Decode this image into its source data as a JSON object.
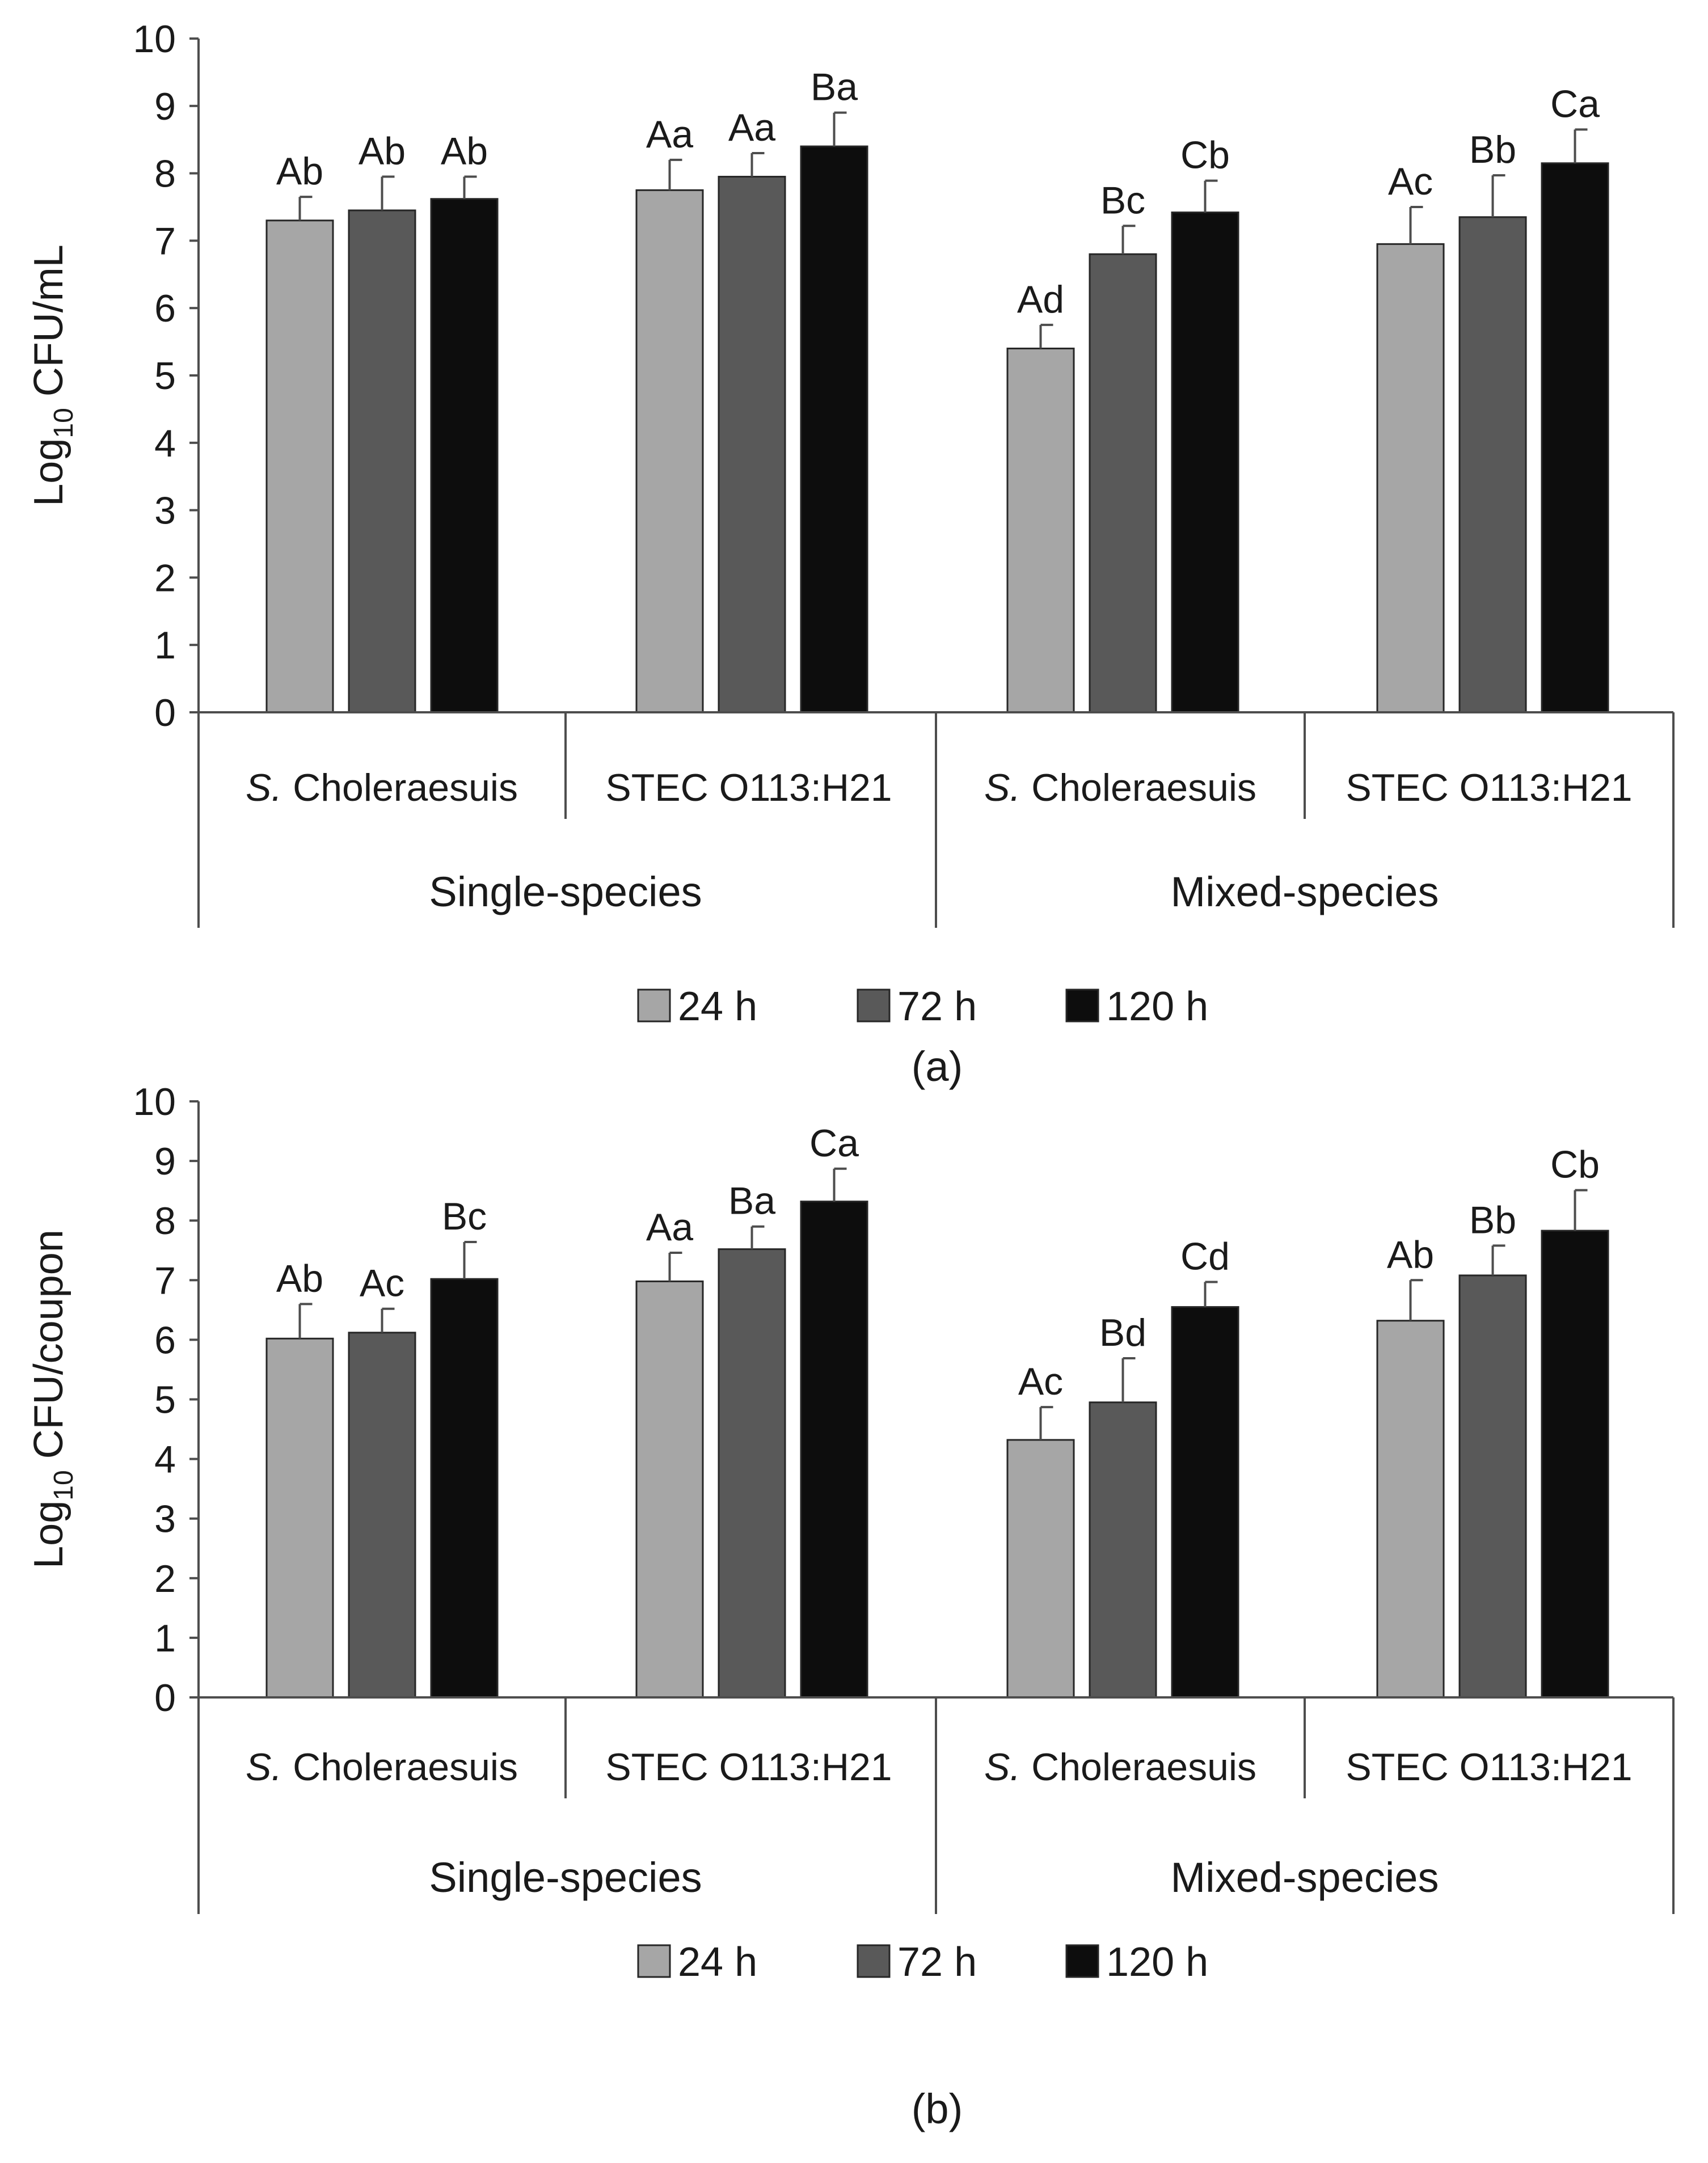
{
  "colors": {
    "series_24h": "#a6a6a6",
    "series_72h": "#595959",
    "series_120h": "#0d0d0d",
    "axis": "#4d4d4d",
    "bar_stroke": "#262626",
    "text": "#1a1a1a"
  },
  "chart_data": [
    {
      "type": "bar",
      "panel_label": "(a)",
      "ylabel": {
        "base": "Log",
        "sub": "10",
        "rest": " CFU/mL"
      },
      "ylim": [
        0,
        10
      ],
      "yticks": [
        "0",
        "1",
        "2",
        "3",
        "4",
        "5",
        "6",
        "7",
        "8",
        "9",
        "10"
      ],
      "categories": [
        {
          "italic": "S.",
          "rest": " Choleraesuis"
        },
        {
          "italic": "",
          "rest": "STEC O113:H21"
        },
        {
          "italic": "S.",
          "rest": " Choleraesuis"
        },
        {
          "italic": "",
          "rest": "STEC O113:H21"
        }
      ],
      "groups": [
        "Single-species",
        "Mixed-species"
      ],
      "series": [
        {
          "name": "24 h",
          "values": [
            7.3,
            7.75,
            5.4,
            6.95
          ],
          "errors": [
            0.35,
            0.45,
            0.35,
            0.55
          ],
          "labels": [
            "Ab",
            "Aa",
            "Ad",
            "Ac"
          ]
        },
        {
          "name": "72 h",
          "values": [
            7.45,
            7.95,
            6.8,
            7.35
          ],
          "errors": [
            0.5,
            0.35,
            0.42,
            0.62
          ],
          "labels": [
            "Ab",
            "Aa",
            "Bc",
            "Bb"
          ]
        },
        {
          "name": "120 h",
          "values": [
            7.62,
            8.4,
            7.42,
            8.15
          ],
          "errors": [
            0.33,
            0.5,
            0.47,
            0.5
          ],
          "labels": [
            "Ab",
            "Ba",
            "Cb",
            "Ca"
          ]
        }
      ],
      "legend": [
        "24 h",
        "72 h",
        "120 h"
      ]
    },
    {
      "type": "bar",
      "panel_label": "(b)",
      "ylabel": {
        "base": "Log",
        "sub": "10",
        "rest": " CFU/coupon"
      },
      "ylim": [
        0,
        10
      ],
      "yticks": [
        "0",
        "1",
        "2",
        "3",
        "4",
        "5",
        "6",
        "7",
        "8",
        "9",
        "10"
      ],
      "categories": [
        {
          "italic": "S.",
          "rest": " Choleraesuis"
        },
        {
          "italic": "",
          "rest": "STEC O113:H21"
        },
        {
          "italic": "S.",
          "rest": " Choleraesuis"
        },
        {
          "italic": "",
          "rest": "STEC O113:H21"
        }
      ],
      "groups": [
        "Single-species",
        "Mixed-species"
      ],
      "series": [
        {
          "name": "24 h",
          "values": [
            6.02,
            6.98,
            4.32,
            6.32
          ],
          "errors": [
            0.58,
            0.48,
            0.55,
            0.68
          ],
          "labels": [
            "Ab",
            "Aa",
            "Ac",
            "Ab"
          ]
        },
        {
          "name": "72 h",
          "values": [
            6.12,
            7.52,
            4.95,
            7.08
          ],
          "errors": [
            0.4,
            0.38,
            0.74,
            0.5
          ],
          "labels": [
            "Ac",
            "Ba",
            "Bd",
            "Bb"
          ]
        },
        {
          "name": "120 h",
          "values": [
            7.02,
            8.32,
            6.55,
            7.83
          ],
          "errors": [
            0.62,
            0.55,
            0.42,
            0.68
          ],
          "labels": [
            "Bc",
            "Ca",
            "Cd",
            "Cb"
          ]
        }
      ],
      "legend": [
        "24 h",
        "72 h",
        "120 h"
      ]
    }
  ]
}
